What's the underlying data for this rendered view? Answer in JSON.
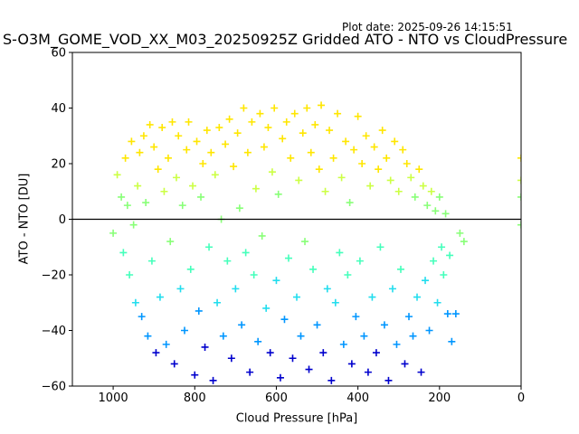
{
  "header": {
    "plot_date": "Plot date: 2025-09-26 14:15:51"
  },
  "chart_data": {
    "type": "scatter",
    "title": "S-O3M_GOME_VOD_XX_M03_20250925Z Gridded ATO - NTO vs CloudPressure",
    "xlabel": "Cloud Pressure [hPa]",
    "ylabel": "ATO - NTO [DU]",
    "xlim": [
      1100,
      0
    ],
    "ylim": [
      -60,
      60
    ],
    "x_ticks": [
      1000,
      800,
      600,
      400,
      200,
      0
    ],
    "y_ticks": [
      -60,
      -40,
      -20,
      0,
      20,
      40,
      60
    ],
    "grid": false,
    "legend": "none",
    "marker": "+",
    "reference_line": {
      "y": 0,
      "color": "#000000"
    },
    "color_scale": [
      "#0000cd",
      "#0096ff",
      "#22ddee",
      "#44ffbb",
      "#88ff77",
      "#ccff44",
      "#ffe600"
    ],
    "series": [
      {
        "points": [
          [
            1000,
            -5
          ],
          [
            990,
            16
          ],
          [
            980,
            8
          ],
          [
            975,
            -12
          ],
          [
            970,
            22
          ],
          [
            965,
            5
          ],
          [
            960,
            -20
          ],
          [
            955,
            28
          ],
          [
            950,
            -2
          ],
          [
            945,
            -30
          ],
          [
            940,
            12
          ],
          [
            935,
            24
          ],
          [
            930,
            -35
          ],
          [
            925,
            30
          ],
          [
            920,
            6
          ],
          [
            915,
            -42
          ],
          [
            910,
            34
          ],
          [
            905,
            -15
          ],
          [
            900,
            26
          ],
          [
            895,
            -48
          ],
          [
            890,
            18
          ],
          [
            885,
            -28
          ],
          [
            880,
            33
          ],
          [
            875,
            10
          ],
          [
            870,
            -45
          ],
          [
            865,
            22
          ],
          [
            860,
            -8
          ],
          [
            855,
            35
          ],
          [
            850,
            -52
          ],
          [
            845,
            15
          ],
          [
            840,
            30
          ],
          [
            835,
            -25
          ],
          [
            830,
            5
          ],
          [
            825,
            -40
          ],
          [
            820,
            25
          ],
          [
            815,
            35
          ],
          [
            810,
            -18
          ],
          [
            805,
            12
          ],
          [
            800,
            -56
          ],
          [
            795,
            28
          ],
          [
            790,
            -33
          ],
          [
            785,
            8
          ],
          [
            780,
            20
          ],
          [
            775,
            -46
          ],
          [
            770,
            32
          ],
          [
            765,
            -10
          ],
          [
            760,
            24
          ],
          [
            755,
            -58
          ],
          [
            750,
            16
          ],
          [
            745,
            -30
          ],
          [
            740,
            33
          ],
          [
            735,
            0
          ],
          [
            730,
            -42
          ],
          [
            725,
            27
          ],
          [
            720,
            -15
          ],
          [
            715,
            36
          ],
          [
            710,
            -50
          ],
          [
            705,
            19
          ],
          [
            700,
            -25
          ],
          [
            695,
            31
          ],
          [
            690,
            4
          ],
          [
            685,
            -38
          ],
          [
            680,
            40
          ],
          [
            675,
            -12
          ],
          [
            670,
            24
          ],
          [
            665,
            -55
          ],
          [
            660,
            35
          ],
          [
            655,
            -20
          ],
          [
            650,
            11
          ],
          [
            645,
            -44
          ],
          [
            640,
            38
          ],
          [
            635,
            -6
          ],
          [
            630,
            26
          ],
          [
            625,
            -32
          ],
          [
            620,
            33
          ],
          [
            615,
            -48
          ],
          [
            610,
            17
          ],
          [
            605,
            40
          ],
          [
            600,
            -22
          ],
          [
            595,
            9
          ],
          [
            590,
            -57
          ],
          [
            585,
            29
          ],
          [
            580,
            -36
          ],
          [
            575,
            35
          ],
          [
            570,
            -14
          ],
          [
            565,
            22
          ],
          [
            560,
            -50
          ],
          [
            555,
            38
          ],
          [
            550,
            -28
          ],
          [
            545,
            14
          ],
          [
            540,
            -42
          ],
          [
            535,
            31
          ],
          [
            530,
            -8
          ],
          [
            525,
            40
          ],
          [
            520,
            -54
          ],
          [
            515,
            24
          ],
          [
            510,
            -18
          ],
          [
            505,
            34
          ],
          [
            500,
            -38
          ],
          [
            495,
            18
          ],
          [
            490,
            41
          ],
          [
            485,
            -48
          ],
          [
            480,
            10
          ],
          [
            475,
            -25
          ],
          [
            470,
            32
          ],
          [
            465,
            -58
          ],
          [
            460,
            22
          ],
          [
            455,
            -30
          ],
          [
            450,
            38
          ],
          [
            445,
            -12
          ],
          [
            440,
            15
          ],
          [
            435,
            -45
          ],
          [
            430,
            28
          ],
          [
            425,
            -20
          ],
          [
            420,
            6
          ],
          [
            415,
            -52
          ],
          [
            410,
            25
          ],
          [
            405,
            -35
          ],
          [
            400,
            37
          ],
          [
            395,
            -15
          ],
          [
            390,
            20
          ],
          [
            385,
            -42
          ],
          [
            380,
            30
          ],
          [
            375,
            -55
          ],
          [
            370,
            12
          ],
          [
            365,
            -28
          ],
          [
            360,
            26
          ],
          [
            355,
            -48
          ],
          [
            350,
            18
          ],
          [
            345,
            -10
          ],
          [
            340,
            32
          ],
          [
            335,
            -38
          ],
          [
            330,
            22
          ],
          [
            325,
            -58
          ],
          [
            320,
            14
          ],
          [
            315,
            -25
          ],
          [
            310,
            28
          ],
          [
            305,
            -45
          ],
          [
            300,
            10
          ],
          [
            295,
            -18
          ],
          [
            290,
            25
          ],
          [
            285,
            -52
          ],
          [
            280,
            20
          ],
          [
            275,
            -35
          ],
          [
            270,
            15
          ],
          [
            265,
            -42
          ],
          [
            260,
            8
          ],
          [
            255,
            -28
          ],
          [
            250,
            18
          ],
          [
            245,
            -55
          ],
          [
            240,
            12
          ],
          [
            235,
            -22
          ],
          [
            230,
            5
          ],
          [
            225,
            -40
          ],
          [
            220,
            10
          ],
          [
            215,
            -15
          ],
          [
            210,
            3
          ],
          [
            205,
            -30
          ],
          [
            200,
            8
          ],
          [
            195,
            -10
          ],
          [
            190,
            -20
          ],
          [
            185,
            2
          ],
          [
            180,
            -34
          ],
          [
            175,
            -13
          ],
          [
            170,
            -44
          ],
          [
            160,
            -34
          ],
          [
            150,
            -5
          ],
          [
            140,
            -8
          ],
          [
            0,
            22
          ],
          [
            0,
            14
          ],
          [
            0,
            8
          ],
          [
            0,
            -2
          ]
        ]
      }
    ]
  }
}
